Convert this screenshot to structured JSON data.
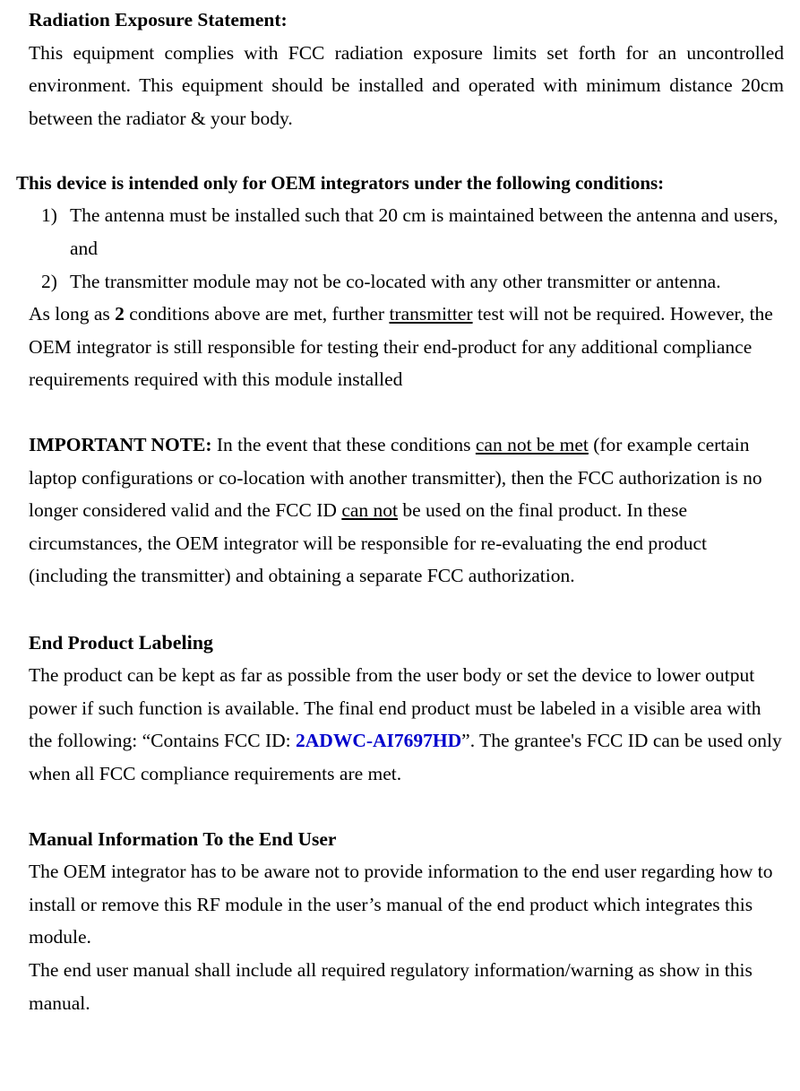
{
  "section1": {
    "heading": "Radiation Exposure Statement:",
    "body": "This equipment complies with FCC radiation exposure limits set forth for an uncontrolled environment. This equipment should be installed and operated with minimum distance 20cm between the radiator & your body."
  },
  "oem_conditions": {
    "heading": "This device is intended only for OEM integrators under the following conditions:",
    "item1_num": "1)",
    "item1": "The antenna must be installed such that 20 cm is maintained between the antenna and users, and",
    "item2_num": "2)",
    "item2": "The transmitter module may not be co-located with any other transmitter or antenna.",
    "followup_pre": "As long as ",
    "followup_boldnum": "2",
    "followup_mid1": " conditions above are met, further ",
    "followup_u1": "transmitter",
    "followup_post": " test will not be required. However, the OEM integrator is still responsible for testing their end-product for any additional compliance requirements required with this module installed"
  },
  "important": {
    "heading": "IMPORTANT NOTE:",
    "t1": " In the event that these conditions ",
    "u1": "can not be met",
    "t2": " (for example certain laptop configurations or co-location with another transmitter), then the FCC authorization is no longer considered valid and the FCC ID ",
    "u2": "can not",
    "t3": " be used on the final product. In these circumstances, the OEM integrator will be responsible for re-evaluating the end product (including the transmitter) and obtaining a separate FCC authorization."
  },
  "labeling": {
    "heading1": "End Product",
    "heading2": " Labeling",
    "t1": "The product can be kept as far as possible from the user body or set the device to lower output power if such function is available. The final end product must be labeled in a visible area with the following: “Contains FCC ID: ",
    "fccid": "2ADWC-AI7697HD",
    "t2": "”. The grantee's FCC ID can be used only when all FCC compliance requirements are met."
  },
  "manualinfo": {
    "heading": "Manual Information To the End User",
    "p1": "The OEM integrator has to be aware not to provide information to the end user regarding how to install or remove this RF module in the user’s manual of the end product which integrates this module.",
    "p2": "The end user manual shall include all required regulatory information/warning as show in this manual."
  }
}
